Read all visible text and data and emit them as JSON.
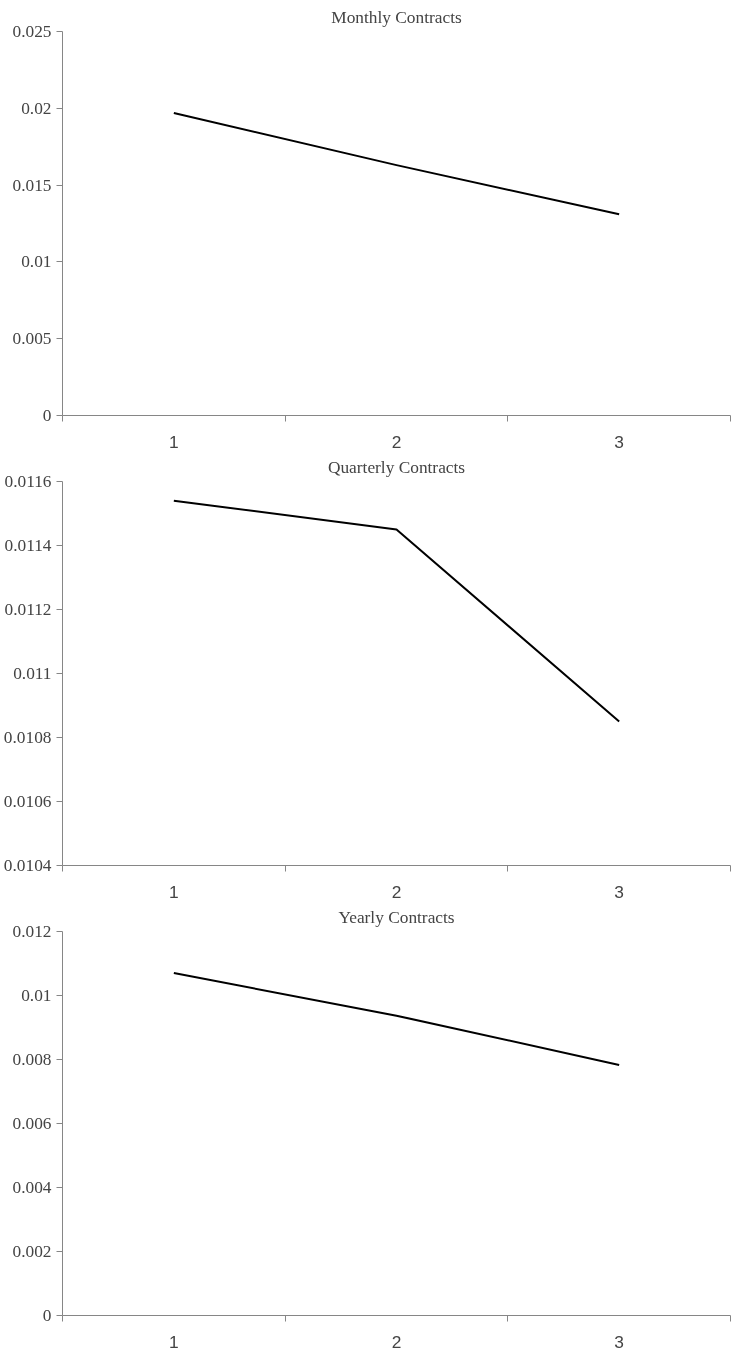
{
  "chart_data": [
    {
      "type": "line",
      "title": "Monthly Contracts",
      "categories": [
        "1",
        "2",
        "3"
      ],
      "values": [
        0.0197,
        0.0163,
        0.0131
      ],
      "color": "#000000",
      "ylim": [
        0,
        0.025
      ],
      "yticks": [
        0,
        0.005,
        0.01,
        0.015,
        0.02,
        0.025
      ]
    },
    {
      "type": "line",
      "title": "Quarterly Contracts",
      "categories": [
        "1",
        "2",
        "3"
      ],
      "values": [
        0.01154,
        0.01145,
        0.01085
      ],
      "color": "#000000",
      "ylim": [
        0.0104,
        0.0116
      ],
      "yticks": [
        0.0104,
        0.0106,
        0.0108,
        0.011,
        0.0112,
        0.0114,
        0.0116
      ]
    },
    {
      "type": "line",
      "title": "Yearly Contracts",
      "categories": [
        "1",
        "2",
        "3"
      ],
      "values": [
        0.0107,
        0.00937,
        0.00783
      ],
      "color": "#000000",
      "ylim": [
        0,
        0.012
      ],
      "yticks": [
        0,
        0.002,
        0.004,
        0.006,
        0.008,
        0.01,
        0.012
      ]
    }
  ]
}
